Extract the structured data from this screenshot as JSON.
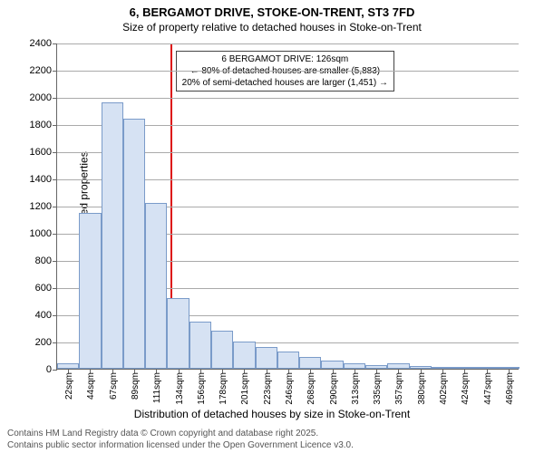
{
  "title": {
    "main": "6, BERGAMOT DRIVE, STOKE-ON-TRENT, ST3 7FD",
    "sub": "Size of property relative to detached houses in Stoke-on-Trent"
  },
  "chart": {
    "type": "histogram",
    "ylabel": "Number of detached properties",
    "xlabel": "Distribution of detached houses by size in Stoke-on-Trent",
    "ylim": [
      0,
      2400
    ],
    "ytick_step": 200,
    "yticks": [
      0,
      200,
      400,
      600,
      800,
      1000,
      1200,
      1400,
      1600,
      1800,
      2000,
      2200,
      2400
    ],
    "bar_fill": "#d6e2f3",
    "bar_stroke": "#7a9bc9",
    "grid_color": "#aaaaaa",
    "axis_color": "#666666",
    "background_color": "#ffffff",
    "refline_color": "#dd1111",
    "refline_x_sqm": 126,
    "x_start": 11,
    "x_binwidth": 22.4,
    "categories_sqm": [
      22,
      44,
      67,
      89,
      111,
      134,
      156,
      178,
      201,
      223,
      246,
      268,
      290,
      313,
      335,
      357,
      380,
      402,
      424,
      447,
      469
    ],
    "values": [
      40,
      1150,
      1960,
      1840,
      1220,
      520,
      350,
      280,
      200,
      160,
      130,
      90,
      60,
      40,
      30,
      40,
      20,
      10,
      5,
      10,
      10
    ],
    "annotation": {
      "line1": "6 BERGAMOT DRIVE: 126sqm",
      "line2": "← 80% of detached houses are smaller (5,883)",
      "line3": "20% of semi-detached houses are larger (1,451) →"
    }
  },
  "footer": {
    "line1": "Contains HM Land Registry data © Crown copyright and database right 2025.",
    "line2": "Contains public sector information licensed under the Open Government Licence v3.0."
  }
}
